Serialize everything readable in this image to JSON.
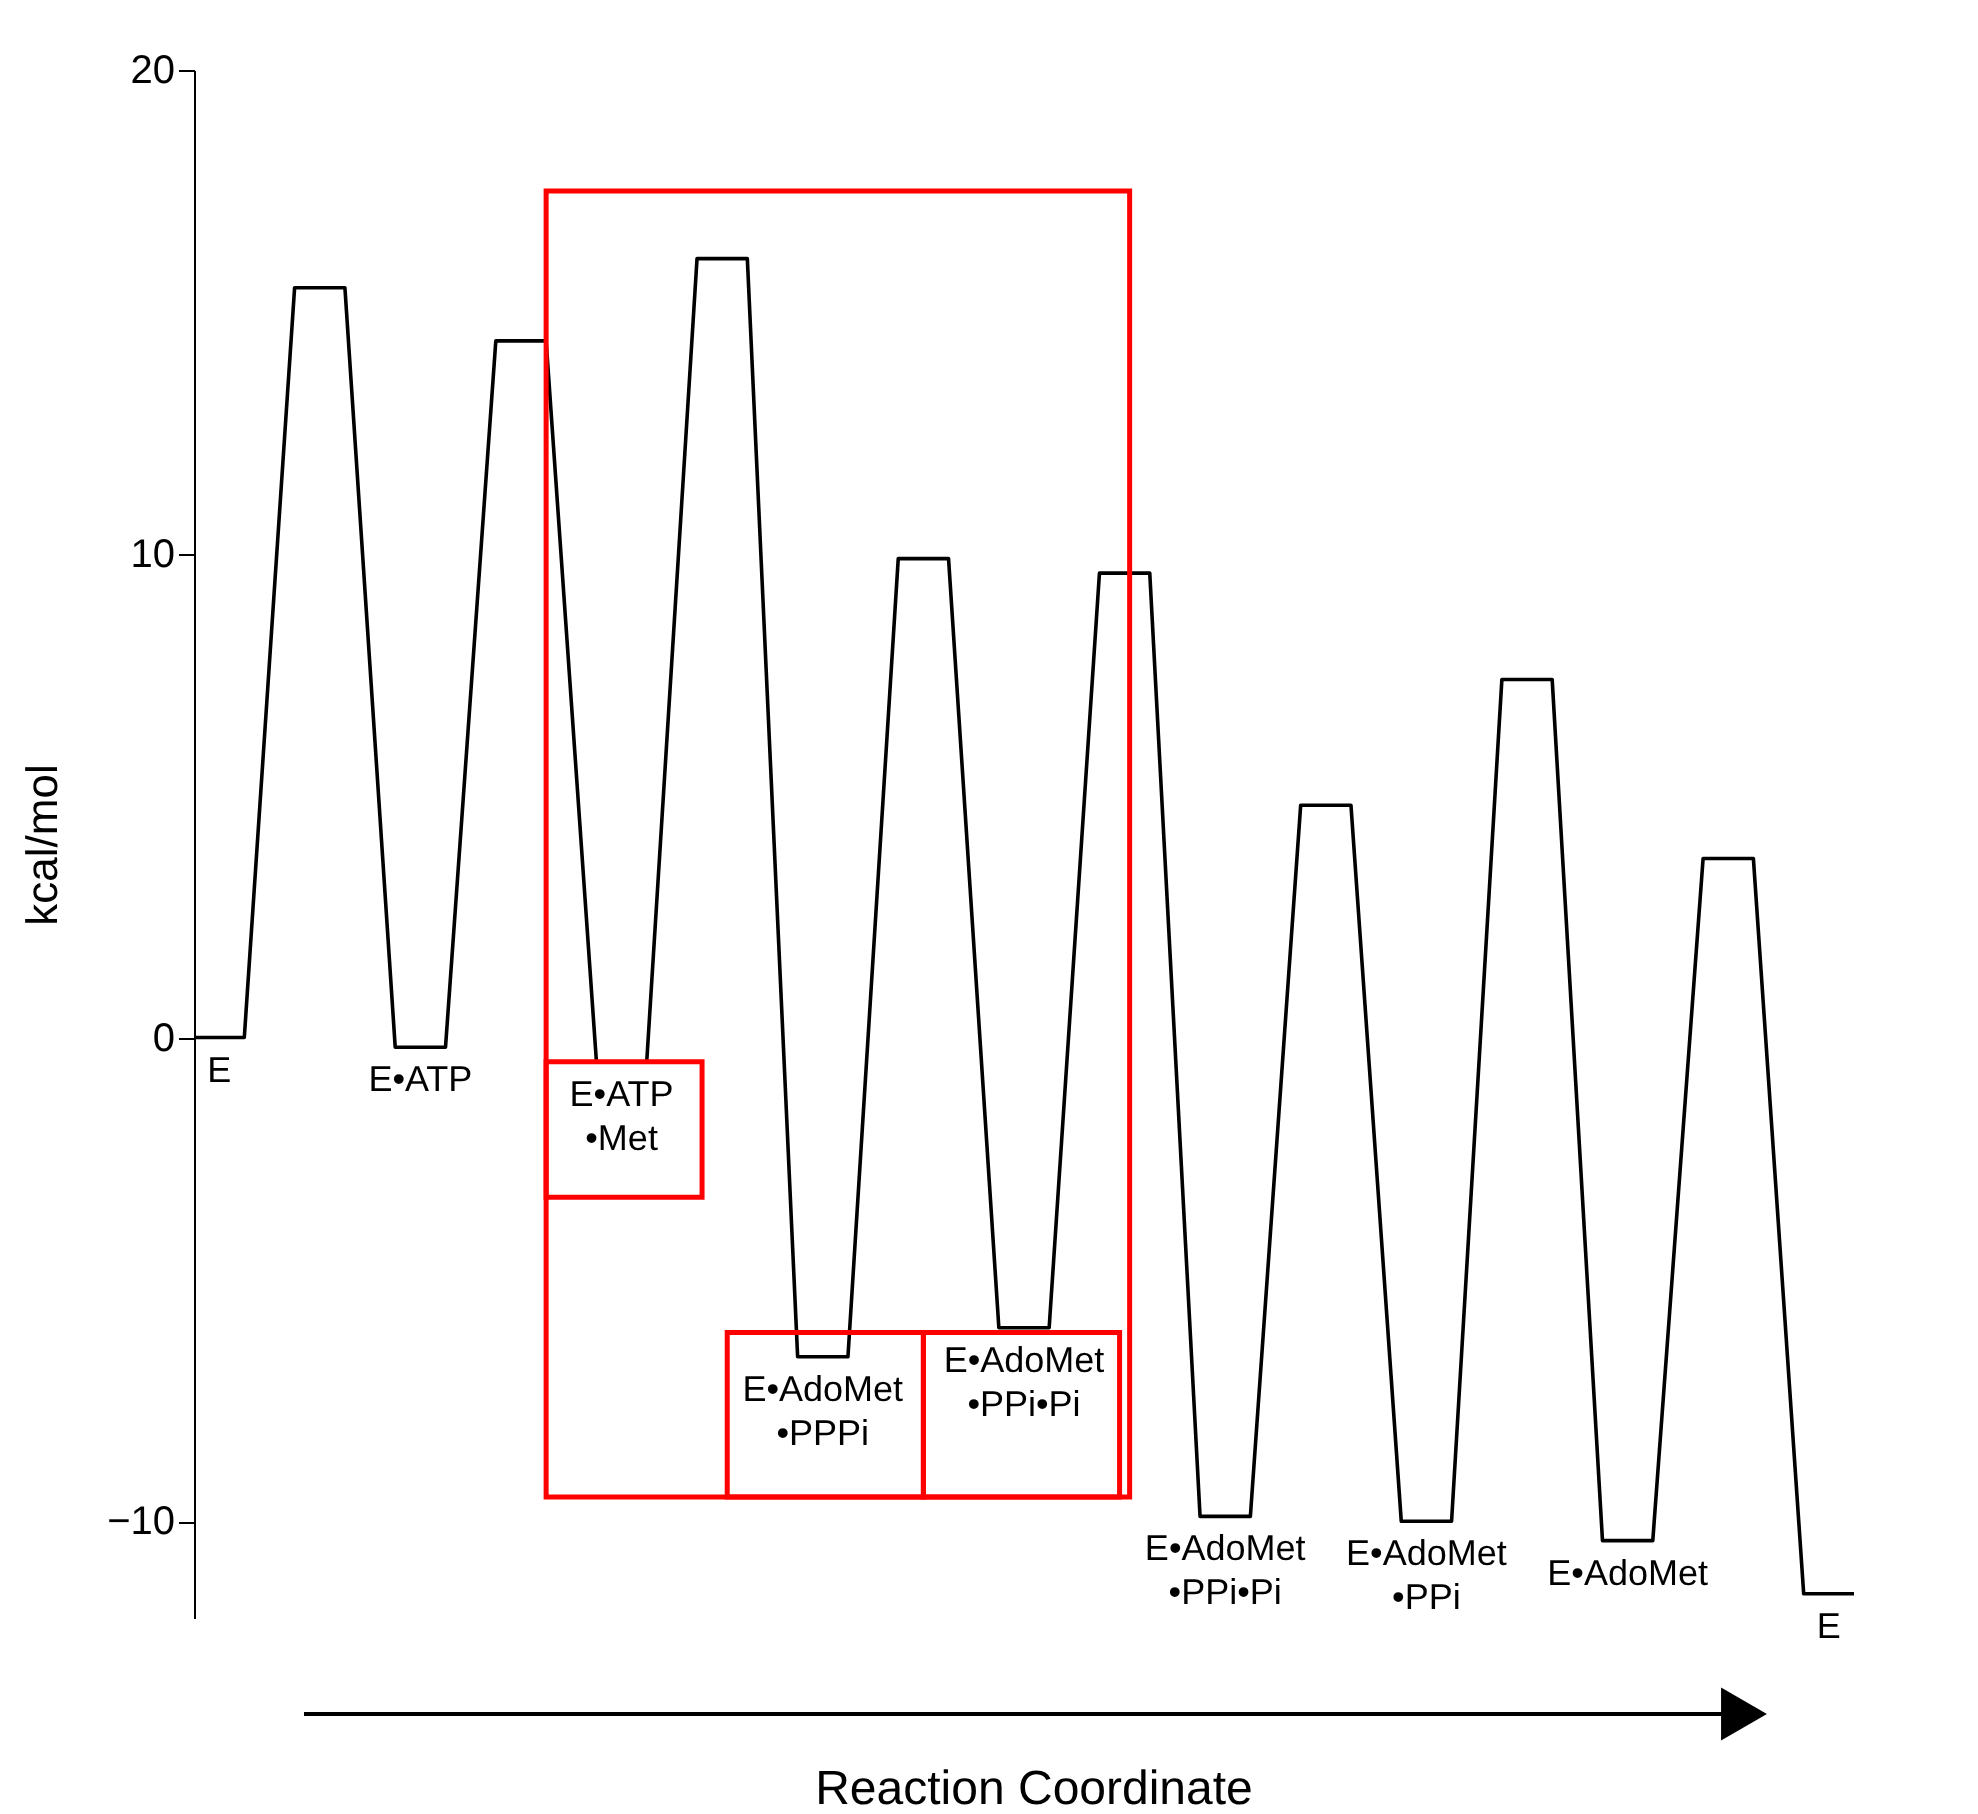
{
  "chart_data": {
    "type": "line",
    "xlabel": "Reaction Coordinate",
    "ylabel": "kcal/mol",
    "categories": [
      null,
      null,
      null,
      null,
      null,
      null,
      null,
      null,
      null,
      null,
      null,
      null,
      null,
      null,
      null,
      null,
      null,
      null,
      null,
      null,
      null,
      null,
      null,
      null,
      null,
      null,
      null,
      null,
      null,
      null,
      null,
      null,
      null,
      null
    ],
    "values": [
      0,
      0,
      15.5,
      15.5,
      -0.2,
      -0.2,
      14.4,
      14.4,
      -0.5,
      -0.5,
      16.1,
      16.1,
      -6.6,
      -6.6,
      9.9,
      9.9,
      -6.0,
      -6.0,
      9.6,
      9.6,
      -9.9,
      -9.9,
      4.8,
      4.8,
      -10.0,
      -10.0,
      7.4,
      7.4,
      -10.4,
      -10.4,
      3.7,
      3.7,
      -11.5,
      -11.5
    ],
    "color": "#000000",
    "ylim": [
      -12,
      20
    ],
    "yticks": [
      -10,
      0,
      10,
      20
    ],
    "grid": false,
    "annotations": [
      {
        "text": "E",
        "y": 0
      },
      {
        "text": "E•ATP",
        "y": -0.2
      },
      {
        "text": "E•ATP\n•Met",
        "y": -0.5
      },
      {
        "text": "E•AdoMet\n•PPPi",
        "y": -6.6
      },
      {
        "text": "E•AdoMet\n•PPi•Pi",
        "y": -6.0
      },
      {
        "text": "E•AdoMet\n•PPi•Pi",
        "y": -9.9
      },
      {
        "text": "E•AdoMet\n•PPi",
        "y": -10.0
      },
      {
        "text": "E•AdoMet",
        "y": -10.4
      },
      {
        "text": "E",
        "y": -11.5
      }
    ]
  }
}
